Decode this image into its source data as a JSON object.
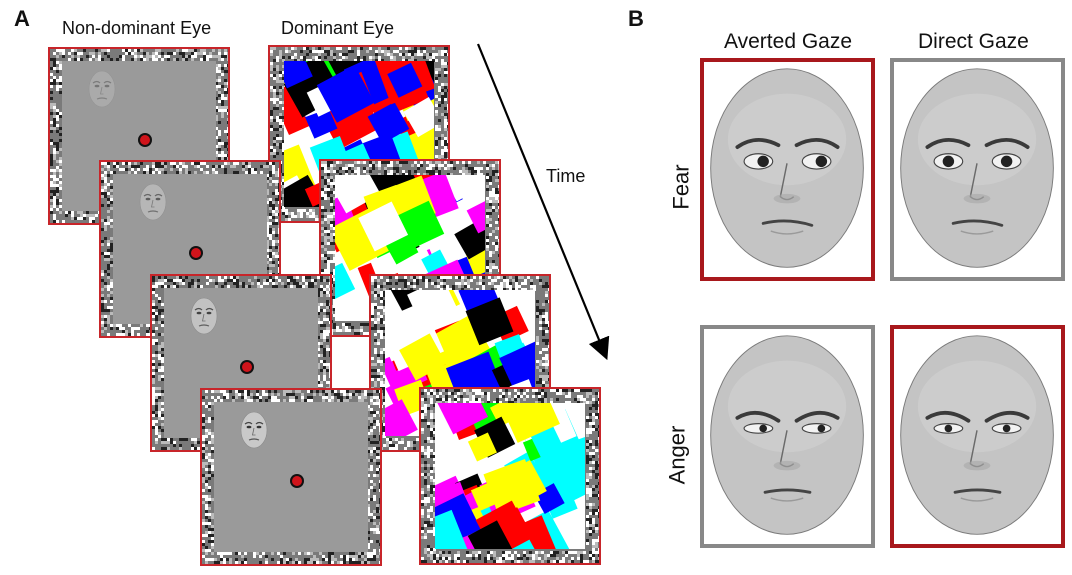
{
  "panel_a": {
    "letter": "A",
    "label_nondominant": "Non-dominant Eye",
    "label_dominant": "Dominant Eye",
    "time_label": "Time",
    "frame_border_color": "#c8252a",
    "fixation_color": "#d0141b",
    "mondrian_colors": [
      "#ff0000",
      "#00ff00",
      "#0000ff",
      "#ffff00",
      "#00ffff",
      "#ff00ff",
      "#000000",
      "#ffffff"
    ]
  },
  "panel_b": {
    "letter": "B",
    "col_headers": [
      "Averted Gaze",
      "Direct Gaze"
    ],
    "row_labels": [
      "Fear",
      "Anger"
    ],
    "highlight_color": "#a8181c",
    "neutral_color": "#888888"
  }
}
